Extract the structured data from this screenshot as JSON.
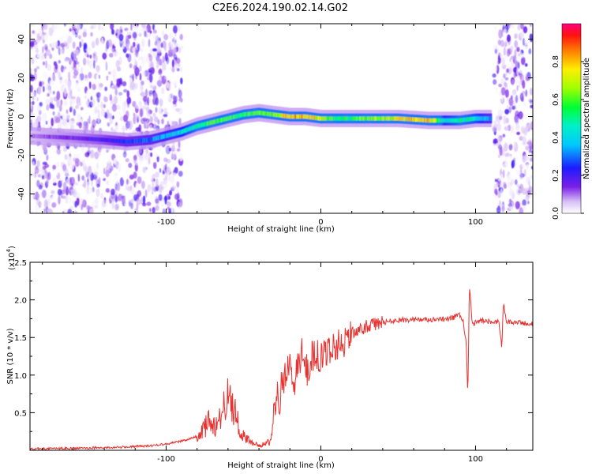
{
  "title": "C2E6.2024.190.02.14.G02",
  "colors": {
    "snr_line": "#e8312f",
    "axis": "#000000",
    "background": "#ffffff"
  },
  "chart_data": [
    {
      "type": "heatmap",
      "xlabel": "Height of straight line (km)",
      "ylabel": "Frequency (Hz)",
      "xlim": [
        -188,
        137
      ],
      "ylim": [
        -50,
        48
      ],
      "x_ticks": [
        -100,
        0,
        100
      ],
      "x_tick_labels": [
        "-100",
        "0",
        "100"
      ],
      "y_ticks": [
        -40,
        -20,
        0,
        20,
        40
      ],
      "y_tick_labels": [
        "-40",
        "-20",
        "0",
        "20",
        "40"
      ],
      "colorbar": {
        "label": "Normalized spectral amplitude",
        "range": [
          0,
          1
        ],
        "ticks": [
          0,
          0.2,
          0.4,
          0.6,
          0.8
        ],
        "tick_labels": [
          "0.0",
          "0.2",
          "0.4",
          "0.6",
          "0.8"
        ],
        "colormap": "rainbow (white-violet-blue-cyan-green-yellow-red-magenta)"
      },
      "dominant_track": {
        "description": "Frequency ridge of the strongest spectral amplitude",
        "x": [
          -188,
          -160,
          -140,
          -125,
          -110,
          -100,
          -90,
          -80,
          -70,
          -60,
          -50,
          -40,
          -30,
          -20,
          -10,
          0,
          10,
          30,
          50,
          70,
          80,
          90,
          100,
          110
        ],
        "y": [
          -10,
          -11,
          -12,
          -13,
          -12,
          -10,
          -8,
          -5,
          -3,
          -1,
          1,
          2,
          1,
          0,
          0,
          -1,
          -1,
          -1,
          -1,
          -2,
          -2,
          -2,
          -1,
          -1
        ],
        "amplitude": [
          0.1,
          0.15,
          0.2,
          0.25,
          0.3,
          0.35,
          0.4,
          0.5,
          0.6,
          0.55,
          0.55,
          0.6,
          0.65,
          0.8,
          0.75,
          0.7,
          0.5,
          0.6,
          0.75,
          0.85,
          0.4,
          0.5,
          0.45,
          0.3
        ]
      },
      "noise_regions": [
        {
          "x_range": [
            -188,
            -90
          ],
          "amplitude": [
            0,
            0.15
          ]
        },
        {
          "x_range": [
            112,
            137
          ],
          "amplitude": [
            0,
            0.15
          ]
        }
      ]
    },
    {
      "type": "line",
      "xlabel": "Height of straight line (km)",
      "ylabel": "SNR (10 * v/v)",
      "y_multiplier_label": "(x10",
      "y_multiplier_exp": "4",
      "y_multiplier_close": ")",
      "xlim": [
        -188,
        137
      ],
      "ylim": [
        0,
        25000
      ],
      "x_ticks": [
        -100,
        0,
        100
      ],
      "x_tick_labels": [
        "-100",
        "0",
        "100"
      ],
      "y_ticks": [
        5000,
        10000,
        15000,
        20000,
        25000
      ],
      "y_tick_labels": [
        "0.5",
        "1.0",
        "1.5",
        "2.0",
        "2.5"
      ],
      "series": [
        {
          "x": [
            -188,
            -160,
            -130,
            -110,
            -95,
            -85,
            -78,
            -72,
            -68,
            -64,
            -60,
            -57,
            -55,
            -52,
            -48,
            -44,
            -40,
            -36,
            -33,
            -30,
            -27,
            -24,
            -21,
            -18,
            -15,
            -12,
            -9,
            -6,
            -3,
            0,
            5,
            10,
            15,
            20,
            30,
            40,
            50,
            60,
            70,
            80,
            85,
            90,
            92,
            94,
            95,
            96,
            98,
            100,
            105,
            110,
            115,
            117,
            118,
            120,
            125,
            130,
            137
          ],
          "y": [
            200,
            250,
            400,
            600,
            1000,
            1500,
            2000,
            4000,
            3000,
            5000,
            7000,
            6000,
            5000,
            2500,
            1500,
            900,
            700,
            800,
            1200,
            5000,
            7000,
            9500,
            12000,
            8500,
            11000,
            13000,
            10500,
            12500,
            13000,
            12000,
            13500,
            14000,
            14500,
            15500,
            16500,
            17000,
            17300,
            17400,
            17300,
            17400,
            17600,
            18000,
            17200,
            14000,
            7000,
            22000,
            16500,
            17000,
            17300,
            17000,
            17200,
            13500,
            20000,
            17000,
            17000,
            16900,
            16800
          ]
        }
      ]
    }
  ]
}
